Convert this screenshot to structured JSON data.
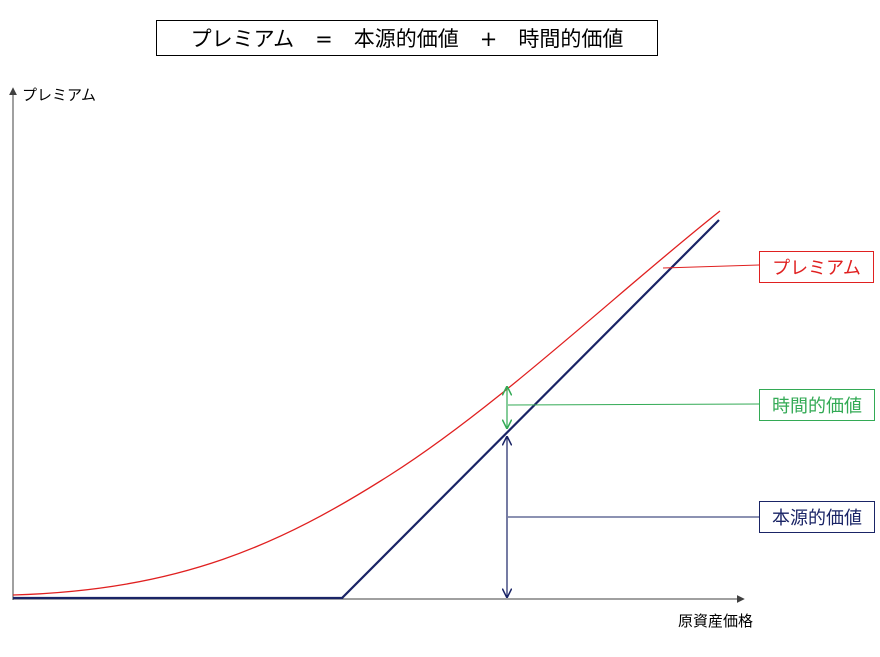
{
  "title": {
    "text": "プレミアム　=　本源的価値　+　時間的価値"
  },
  "axes": {
    "y_label": "プレミアム",
    "x_label": "原資産価格"
  },
  "legend": {
    "premium": "プレミアム",
    "time_value": "時間的価値",
    "intrinsic_value": "本源的価値"
  },
  "colors": {
    "premium": "#e02020",
    "time_value": "#33aa55",
    "intrinsic_value": "#1a2466",
    "axis": "#404040",
    "title_border": "#000000"
  }
}
